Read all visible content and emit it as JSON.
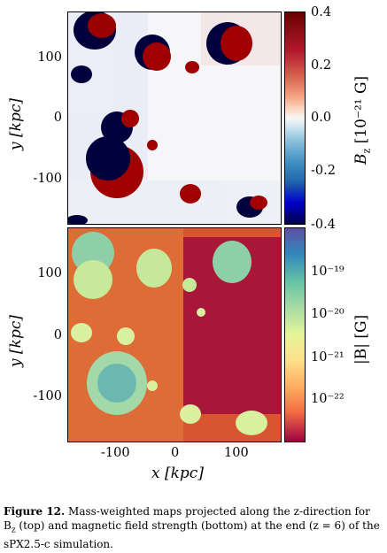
{
  "top_panel": {
    "colorbar_label_prefix": "B",
    "colorbar_label_sub": "z",
    "colorbar_label_units": "[10⁻²¹ G]",
    "colorbar_ticks": [
      "0.4",
      "0.2",
      "0.0",
      "-0.2",
      "-0.4"
    ],
    "ylabel": "y [kpc]",
    "yticks": [
      "100",
      "0",
      "-100"
    ]
  },
  "bottom_panel": {
    "colorbar_label": "|B| [G]",
    "colorbar_ticks": [
      "10⁻¹⁹",
      "10⁻²⁰",
      "10⁻²¹",
      "10⁻²²"
    ],
    "ylabel": "y [kpc]",
    "yticks": [
      "100",
      "0",
      "-100"
    ],
    "xlabel": "x [kpc]",
    "xticks": [
      "-100",
      "0",
      "100"
    ]
  },
  "caption": {
    "label": "Figure 12.",
    "text": "Mass-weighted maps projected along the z-direction for B",
    "sub": "z",
    "text2": " (top) and magnetic field strength (bottom) at the end (z = 6) of the sPX2.5-c simulation."
  },
  "colors": {
    "top_positive": "#8b0000",
    "top_negative": "#00004a",
    "bottom_background": "#c0392b",
    "bottom_bubbles": "#8fd6b0"
  }
}
